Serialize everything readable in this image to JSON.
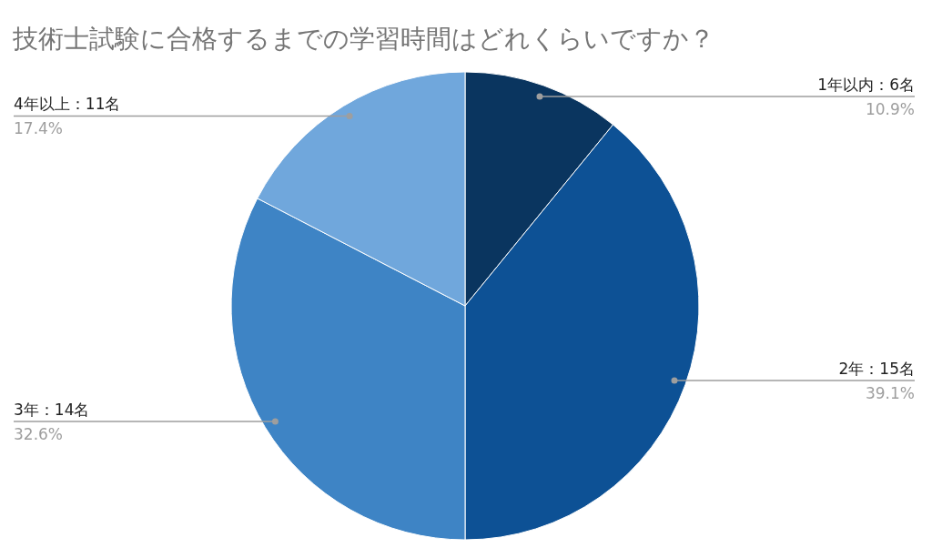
{
  "chart_data": {
    "type": "pie",
    "title": "技術士試験に合格するまでの学習時間はどれくらいですか？",
    "categories": [
      "1年以内：6名",
      "2年：15名",
      "3年：14名",
      "4年以上：11名"
    ],
    "values": [
      10.9,
      39.1,
      32.6,
      17.4
    ],
    "value_labels": [
      "10.9%",
      "39.1%",
      "32.6%",
      "17.4%"
    ],
    "colors": [
      "#0a355f",
      "#0d5195",
      "#3e84c5",
      "#70a7dc"
    ]
  }
}
